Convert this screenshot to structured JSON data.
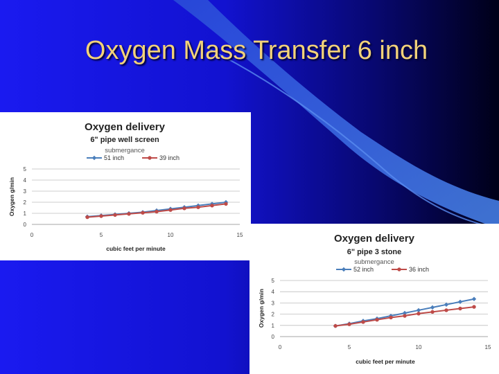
{
  "slide": {
    "title": "Oxygen Mass Transfer 6 inch",
    "colors": {
      "background_dark": "#000018",
      "background_blue": "#1414e0",
      "title_text": "#f2d27a",
      "swoosh": "#3a6ee8"
    }
  },
  "chart_data": [
    {
      "type": "line",
      "title": "Oxygen delivery",
      "subtitle": "6\" pipe well screen",
      "legend_title": "submergance",
      "legend_position": "top",
      "xlabel": "cubic feet per minute",
      "ylabel": "Oxygen g/min",
      "xlim": [
        0,
        15
      ],
      "ylim": [
        0,
        5
      ],
      "x_ticks": [
        0,
        5,
        10,
        15
      ],
      "y_ticks": [
        0,
        1,
        2,
        3,
        4,
        5
      ],
      "grid": true,
      "series": [
        {
          "name": "51 inch",
          "color": "#4a7ebb",
          "marker": "diamond",
          "x": [
            4,
            5,
            6,
            7,
            8,
            9,
            10,
            11,
            12,
            13,
            14
          ],
          "y": [
            0.7,
            0.8,
            0.9,
            1.0,
            1.1,
            1.25,
            1.4,
            1.55,
            1.7,
            1.85,
            2.0
          ]
        },
        {
          "name": "39 inch",
          "color": "#be4b48",
          "marker": "circle",
          "x": [
            4,
            5,
            6,
            7,
            8,
            9,
            10,
            11,
            12,
            13,
            14
          ],
          "y": [
            0.65,
            0.75,
            0.85,
            0.95,
            1.05,
            1.15,
            1.3,
            1.45,
            1.55,
            1.7,
            1.85
          ]
        }
      ]
    },
    {
      "type": "line",
      "title": "Oxygen delivery",
      "subtitle": "6\" pipe 3 stone",
      "legend_title": "submergance",
      "legend_position": "top",
      "xlabel": "cubic feet per minute",
      "ylabel": "Oxygen g/min",
      "xlim": [
        0,
        15
      ],
      "ylim": [
        0,
        5
      ],
      "x_ticks": [
        0,
        5,
        10,
        15
      ],
      "y_ticks": [
        0,
        1,
        2,
        3,
        4,
        5
      ],
      "grid": true,
      "series": [
        {
          "name": "52 inch",
          "color": "#4a7ebb",
          "marker": "diamond",
          "x": [
            4,
            5,
            6,
            7,
            8,
            9,
            10,
            11,
            12,
            13,
            14
          ],
          "y": [
            0.95,
            1.15,
            1.4,
            1.6,
            1.85,
            2.1,
            2.35,
            2.6,
            2.85,
            3.1,
            3.35
          ]
        },
        {
          "name": "36 inch",
          "color": "#be4b48",
          "marker": "circle",
          "x": [
            4,
            5,
            6,
            7,
            8,
            9,
            10,
            11,
            12,
            13,
            14
          ],
          "y": [
            0.95,
            1.1,
            1.3,
            1.5,
            1.7,
            1.85,
            2.05,
            2.2,
            2.35,
            2.5,
            2.65
          ]
        }
      ]
    }
  ]
}
